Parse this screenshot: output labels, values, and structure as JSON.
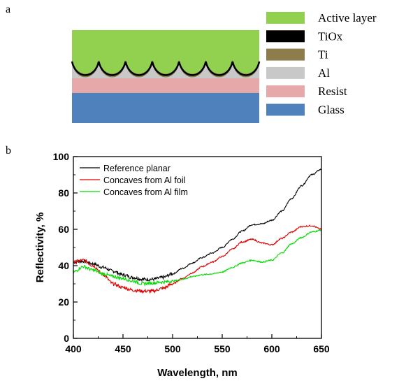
{
  "panel_a": {
    "label": "a",
    "legend": [
      {
        "name": "Active layer",
        "color": "#92d050"
      },
      {
        "name": "TiOx",
        "color": "#000000"
      },
      {
        "name": "Ti",
        "color": "#8c7d4a"
      },
      {
        "name": "Al",
        "color": "#c8c8c8"
      },
      {
        "name": "Resist",
        "color": "#e6a8a8"
      },
      {
        "name": "Glass",
        "color": "#4f81bd"
      }
    ]
  },
  "panel_b": {
    "label": "b"
  },
  "chart_data": {
    "type": "line",
    "xlabel": "Wavelength, nm",
    "ylabel": "Reflectivity, %",
    "xlim": [
      400,
      650
    ],
    "ylim": [
      0,
      100
    ],
    "xticks": [
      400,
      450,
      500,
      550,
      600,
      650
    ],
    "yticks": [
      0,
      20,
      40,
      60,
      80,
      100
    ],
    "legend_position": "top-left",
    "grid": false,
    "x": [
      400,
      410,
      420,
      430,
      440,
      450,
      460,
      470,
      480,
      490,
      500,
      510,
      520,
      530,
      540,
      550,
      560,
      570,
      580,
      590,
      600,
      610,
      620,
      630,
      640,
      650
    ],
    "series": [
      {
        "name": "Reference planar",
        "color": "#000000",
        "values": [
          42,
          42.5,
          41,
          39,
          37,
          35,
          33.5,
          32.5,
          32.5,
          33.5,
          35.5,
          38.5,
          41.5,
          44.5,
          47,
          50,
          54.5,
          59,
          62.5,
          63,
          65,
          70,
          77,
          84,
          90,
          93
        ]
      },
      {
        "name": "Concaves from Al foil",
        "color": "#e00000",
        "values": [
          42,
          43,
          40,
          35,
          30,
          28,
          26.5,
          26,
          26,
          27.5,
          30,
          33,
          36,
          39.5,
          42,
          45,
          49,
          53,
          54.5,
          52.5,
          51.5,
          55,
          58.5,
          61.5,
          62,
          60
        ]
      },
      {
        "name": "Concaves from Al film",
        "color": "#00dd00",
        "values": [
          36.5,
          39.5,
          37.5,
          35.5,
          34,
          33,
          31.5,
          30,
          30.5,
          31,
          31.5,
          32.5,
          34,
          35,
          35.5,
          36.5,
          39,
          41.5,
          43,
          42,
          43,
          47,
          52,
          55.5,
          58.5,
          59.5
        ]
      }
    ]
  }
}
